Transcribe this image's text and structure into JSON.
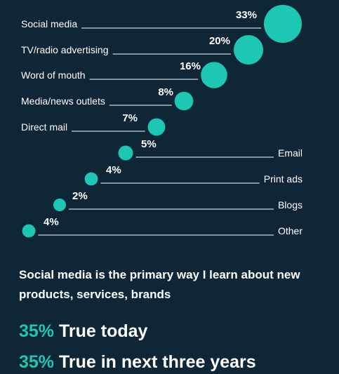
{
  "chart_data": {
    "type": "bubble",
    "title": "",
    "categories": [
      "Social media",
      "TV/radio advertising",
      "Word of mouth",
      "Media/news outlets",
      "Direct mail",
      "Email",
      "Print ads",
      "Blogs",
      "Other"
    ],
    "values": [
      33,
      20,
      16,
      8,
      7,
      5,
      4,
      2,
      4
    ],
    "value_labels": [
      "33%",
      "20%",
      "16%",
      "8%",
      "7%",
      "5%",
      "4%",
      "2%",
      "4%"
    ],
    "label_side": [
      "left",
      "left",
      "left",
      "left",
      "left",
      "right",
      "right",
      "right",
      "right"
    ],
    "color": "#1cc8b4"
  },
  "headline": "Social media is the primary way I learn about new products, services, brands",
  "stats": [
    {
      "pct": "35%",
      "text": "True today"
    },
    {
      "pct": "35%",
      "text": "True in next three years"
    }
  ],
  "colors": {
    "background": "#0f2636",
    "accent": "#1cc8b4",
    "text": "#ffffff"
  }
}
